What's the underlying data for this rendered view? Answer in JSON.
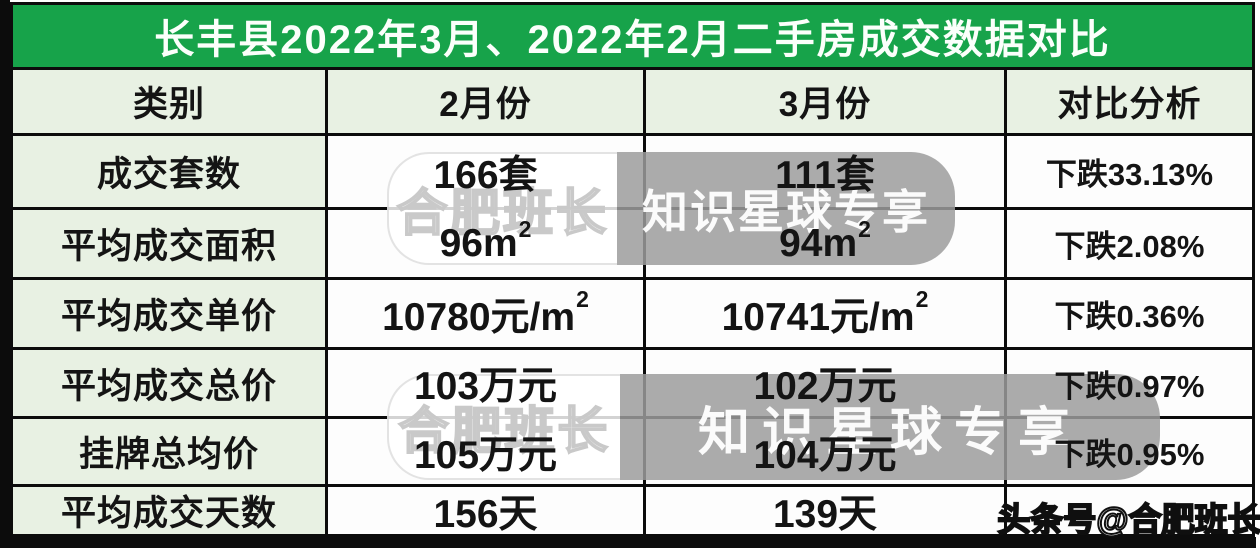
{
  "title": "长丰县2022年3月、2022年2月二手房成交数据对比",
  "table": {
    "headers": [
      "类别",
      "2月份",
      "3月份",
      "对比分析"
    ],
    "rows": [
      {
        "label": "成交套数",
        "feb": "166套",
        "mar": "111套",
        "analysis": "下跌33.13%"
      },
      {
        "label": "平均成交面积",
        "feb": "96m",
        "feb_sup": "2",
        "mar": "94m",
        "mar_sup": "2",
        "analysis": "下跌2.08%"
      },
      {
        "label": "平均成交单价",
        "feb": "10780元/m",
        "feb_sup": "2",
        "mar": "10741元/m",
        "mar_sup": "2",
        "analysis": "下跌0.36%"
      },
      {
        "label": "平均成交总价",
        "feb": "103万元",
        "mar": "102万元",
        "analysis": "下跌0.97%"
      },
      {
        "label": "挂牌总均价",
        "feb": "105万元",
        "mar": "104万元",
        "analysis": "下跌0.95%"
      },
      {
        "label": "平均成交天数",
        "feb": "156天",
        "mar": "139天",
        "analysis": ""
      }
    ]
  },
  "watermarks": {
    "pill_left_text": "合肥班长",
    "pill_right_text": "知识星球专享",
    "corner_text": "头条号@合肥班长"
  },
  "colors": {
    "title_green": "#17a34a",
    "light_green": "#e8f1e3",
    "border_black": "#0c0c0c",
    "cell_white": "#fdfdfd"
  },
  "chart_data": {
    "type": "table",
    "title": "长丰县2022年3月、2022年2月二手房成交数据对比",
    "columns": [
      "类别",
      "2月份",
      "3月份",
      "对比分析"
    ],
    "rows": [
      [
        "成交套数",
        "166套",
        "111套",
        "下跌33.13%"
      ],
      [
        "平均成交面积",
        "96m²",
        "94m²",
        "下跌2.08%"
      ],
      [
        "平均成交单价",
        "10780元/m²",
        "10741元/m²",
        "下跌0.36%"
      ],
      [
        "平均成交总价",
        "103万元",
        "102万元",
        "下跌0.97%"
      ],
      [
        "挂牌总均价",
        "105万元",
        "104万元",
        "下跌0.95%"
      ],
      [
        "平均成交天数",
        "156天",
        "139天",
        ""
      ]
    ]
  }
}
